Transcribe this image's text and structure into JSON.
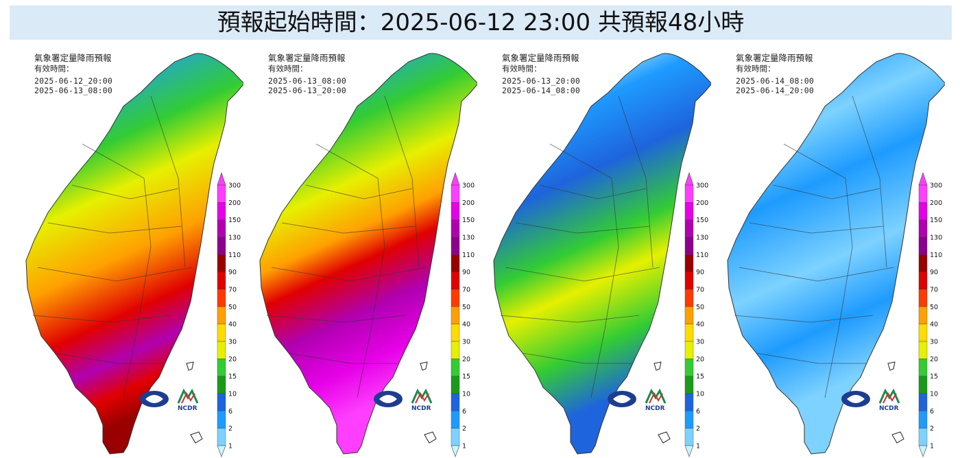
{
  "header": {
    "title": "預報起始時間：2025-06-12 23:00  共預報48小時"
  },
  "panels": [
    {
      "title": "氣象署定量降雨預報",
      "valid_label": "有效時間：",
      "start": "2025-06-12_20:00",
      "end": "2025-06-13_08:00"
    },
    {
      "title": "氣象署定量降雨預報",
      "valid_label": "有效時間：",
      "start": "2025-06-13_08:00",
      "end": "2025-06-13_20:00"
    },
    {
      "title": "氣象署定量降雨預報",
      "valid_label": "有效時間：",
      "start": "2025-06-13_20:00",
      "end": "2025-06-14_08:00"
    },
    {
      "title": "氣象署定量降雨預報",
      "valid_label": "有效時間：",
      "start": "2025-06-14_08:00",
      "end": "2025-06-14_20:00"
    }
  ],
  "legend": {
    "levels": [
      "300",
      "200",
      "150",
      "130",
      "110",
      "90",
      "70",
      "50",
      "40",
      "30",
      "20",
      "15",
      "10",
      "6",
      "2",
      "1"
    ],
    "colors": [
      "#ff3eff",
      "#e600e6",
      "#b000b0",
      "#8c008c",
      "#9a0000",
      "#e00000",
      "#ff3a00",
      "#ffa000",
      "#ffdc00",
      "#e6f000",
      "#33cc33",
      "#1a9a1a",
      "#1e64dc",
      "#1e9bff",
      "#7dd2ff",
      "#c8f5ff"
    ]
  },
  "logos": [
    {
      "name": "cwa-logo"
    },
    {
      "name": "ncdr-logo",
      "text": "NCDR"
    }
  ]
}
